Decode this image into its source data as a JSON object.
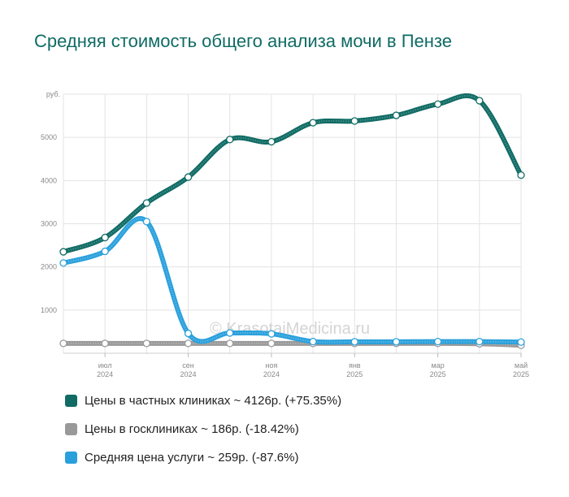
{
  "title": "Средняя стоимость общего анализа мочи в Пензе",
  "watermark": "© KrasotaiMedicina.ru",
  "chart_data": {
    "type": "line",
    "y_unit_label": "руб.",
    "yticks": [
      "1000",
      "2000",
      "3000",
      "4000",
      "5000"
    ],
    "ylim": [
      0,
      6000
    ],
    "x_tick_labels": [
      [
        "июл",
        "2024"
      ],
      [
        "сен",
        "2024"
      ],
      [
        "ноя",
        "2024"
      ],
      [
        "янв",
        "2025"
      ],
      [
        "мар",
        "2025"
      ],
      [
        "май",
        "2025"
      ]
    ],
    "x": [
      "2024-06",
      "2024-07",
      "2024-08",
      "2024-09",
      "2024-10",
      "2024-11",
      "2024-12",
      "2025-01",
      "2025-02",
      "2025-03",
      "2025-04",
      "2025-05"
    ],
    "grid": true,
    "legend_position": "bottom",
    "series": [
      {
        "name": "Цены в частных клиниках ~ 4126р. (+75.35%)",
        "color": "#0f6b64",
        "values": [
          2350,
          2680,
          3480,
          4080,
          4950,
          4900,
          5340,
          5380,
          5510,
          5770,
          5850,
          4126
        ]
      },
      {
        "name": "Цены в госклиниках ~ 186р. (-18.42%)",
        "color": "#999999",
        "values": [
          228,
          228,
          228,
          228,
          228,
          228,
          228,
          228,
          228,
          228,
          220,
          186
        ]
      },
      {
        "name": "Средняя цена услуги ~ 259р. (-87.6%)",
        "color": "#29a0dc",
        "values": [
          2090,
          2360,
          3050,
          460,
          470,
          450,
          270,
          265,
          265,
          270,
          270,
          259
        ]
      }
    ]
  }
}
